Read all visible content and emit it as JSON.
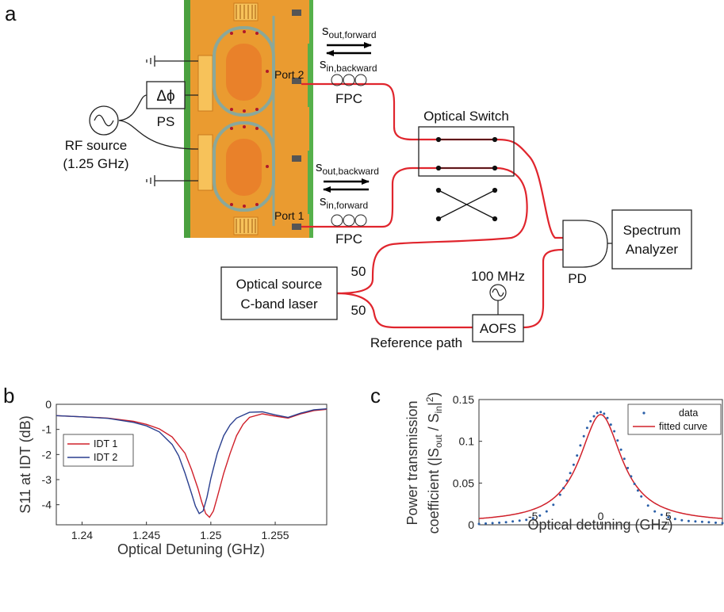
{
  "panels": {
    "a": "a",
    "b": "b",
    "c": "c"
  },
  "schematic": {
    "s_out_forward": {
      "main": "s",
      "sub": "out,forward"
    },
    "s_in_backward": {
      "main": "s",
      "sub": "in,backward"
    },
    "s_out_backward": {
      "main": "s",
      "sub": "out,backward"
    },
    "s_in_forward": {
      "main": "s",
      "sub": "in,forward"
    },
    "port2": "Port 2",
    "port1": "Port 1",
    "fpc_top": "FPC",
    "fpc_bottom": "FPC",
    "phase_shifter_symbol": "Δϕ",
    "ps": "PS",
    "rf_source_line1": "RF source",
    "rf_source_line2": "(1.25 GHz)",
    "optical_switch": "Optical Switch",
    "optical_source_line1": "Optical source",
    "optical_source_line2": "C-band laser",
    "split_top": "50",
    "split_bottom": "50",
    "rf_100mhz": "100 MHz",
    "aofs": "AOFS",
    "reference_path": "Reference path",
    "pd": "PD",
    "spectrum_line1": "Spectrum",
    "spectrum_line2": "Analyzer",
    "colors": {
      "fiber": "#e0252d",
      "chip_bg": "#56b04a",
      "chip_gold": "#f29a2e"
    }
  },
  "chart_data": [
    {
      "type": "line",
      "panel": "b",
      "xlabel": "Optical Detuning (GHz)",
      "ylabel": "S11 at IDT (dB)",
      "xlim": [
        1.238,
        1.259
      ],
      "ylim": [
        -4.8,
        0
      ],
      "xticks": [
        1.24,
        1.245,
        1.25,
        1.255
      ],
      "xtick_labels": [
        "1.24",
        "1.245",
        "1.25",
        "1.255"
      ],
      "yticks": [
        0,
        -1,
        -2,
        -3,
        -4
      ],
      "ytick_labels": [
        "0",
        "-1",
        "-2",
        "-3",
        "-4"
      ],
      "legend_position": "top-left",
      "series": [
        {
          "name": "IDT 1",
          "color": "#d0202a",
          "x": [
            1.238,
            1.24,
            1.242,
            1.244,
            1.245,
            1.246,
            1.247,
            1.248,
            1.2485,
            1.249,
            1.2493,
            1.2496,
            1.2499,
            1.2502,
            1.2505,
            1.251,
            1.2515,
            1.252,
            1.2525,
            1.253,
            1.254,
            1.255,
            1.256,
            1.257,
            1.258,
            1.259
          ],
          "y": [
            -0.45,
            -0.5,
            -0.55,
            -0.68,
            -0.8,
            -0.98,
            -1.3,
            -1.95,
            -2.6,
            -3.35,
            -3.9,
            -4.35,
            -4.5,
            -4.25,
            -3.7,
            -2.75,
            -1.95,
            -1.25,
            -0.8,
            -0.52,
            -0.38,
            -0.47,
            -0.55,
            -0.38,
            -0.25,
            -0.2
          ]
        },
        {
          "name": "IDT 2",
          "color": "#2a3f8f",
          "x": [
            1.238,
            1.24,
            1.242,
            1.244,
            1.245,
            1.246,
            1.247,
            1.2475,
            1.248,
            1.2485,
            1.2488,
            1.2491,
            1.2494,
            1.2497,
            1.25,
            1.2505,
            1.251,
            1.2515,
            1.252,
            1.253,
            1.254,
            1.255,
            1.256,
            1.257,
            1.258,
            1.259
          ],
          "y": [
            -0.45,
            -0.5,
            -0.56,
            -0.72,
            -0.86,
            -1.1,
            -1.6,
            -2.05,
            -2.75,
            -3.55,
            -4.05,
            -4.35,
            -4.25,
            -3.7,
            -2.95,
            -1.95,
            -1.25,
            -0.82,
            -0.55,
            -0.32,
            -0.3,
            -0.42,
            -0.52,
            -0.35,
            -0.22,
            -0.18
          ]
        }
      ]
    },
    {
      "type": "scatter",
      "panel": "c",
      "xlabel": "Optical detuning (GHz)",
      "ylabel_line1": "Power transmission",
      "ylabel_line2": {
        "pre": "coefficient (|S",
        "sub1": "out",
        "mid": " / S",
        "sub2": "in",
        "post": "|",
        "sup": "2",
        "end": ")"
      },
      "xlim": [
        -9,
        9
      ],
      "ylim": [
        0,
        0.15
      ],
      "xticks": [
        -5,
        0,
        5
      ],
      "xtick_labels": [
        "-5",
        "0",
        "5"
      ],
      "yticks": [
        0,
        0.05,
        0.1,
        0.15
      ],
      "ytick_labels": [
        "0",
        "0.05",
        "0.1",
        "0.15"
      ],
      "legend_position": "top-right",
      "fit": {
        "name": "fitted curve",
        "color": "#d0202a",
        "model": "lorentzian",
        "peak": 0.132,
        "center": 0,
        "hwhm": 1.9,
        "offset": 0.002
      },
      "data": {
        "name": "data",
        "color": "#2a5fa8",
        "x": [
          -9,
          -8.5,
          -8,
          -7.5,
          -7,
          -6.5,
          -6,
          -5.5,
          -5,
          -4.5,
          -4,
          -3.5,
          -3,
          -2.75,
          -2.5,
          -2.25,
          -2,
          -1.75,
          -1.5,
          -1.25,
          -1,
          -0.75,
          -0.5,
          -0.25,
          0,
          0.25,
          0.5,
          0.75,
          1,
          1.25,
          1.5,
          1.75,
          2,
          2.25,
          2.5,
          2.75,
          3,
          3.5,
          4,
          4.5,
          5,
          5.5,
          6,
          6.5,
          7,
          7.5,
          8,
          8.5,
          9
        ],
        "y": [
          0.001,
          0.0015,
          0.002,
          0.0025,
          0.003,
          0.004,
          0.005,
          0.006,
          0.008,
          0.011,
          0.016,
          0.024,
          0.036,
          0.044,
          0.053,
          0.062,
          0.072,
          0.083,
          0.095,
          0.106,
          0.116,
          0.124,
          0.13,
          0.134,
          0.135,
          0.133,
          0.128,
          0.12,
          0.112,
          0.101,
          0.09,
          0.079,
          0.068,
          0.058,
          0.049,
          0.041,
          0.034,
          0.023,
          0.016,
          0.012,
          0.009,
          0.007,
          0.0055,
          0.0045,
          0.004,
          0.0035,
          0.003,
          0.0025,
          0.002
        ]
      }
    }
  ]
}
